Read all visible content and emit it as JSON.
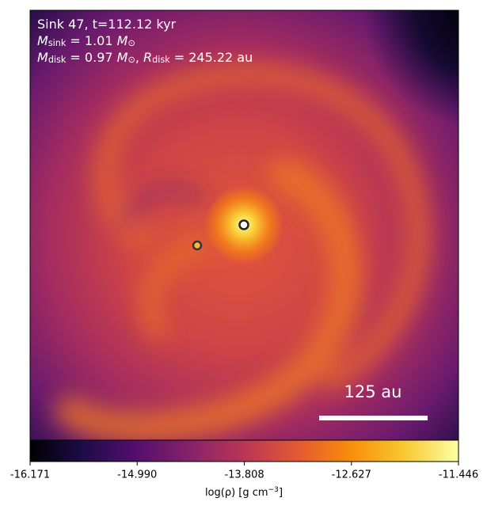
{
  "chart_data": {
    "type": "heatmap",
    "colormap": "inferno",
    "annotations": [
      [
        {
          "text": "Sink 47, t=112.12 kyr"
        }
      ],
      [
        {
          "text": "M"
        },
        {
          "text": "sink",
          "sub": true
        },
        {
          "text": " = 1.01 "
        },
        {
          "text": "M"
        },
        {
          "text": "⊙",
          "sub": true
        }
      ],
      [
        {
          "text": "M"
        },
        {
          "text": "disk",
          "sub": true
        },
        {
          "text": " = 0.97 "
        },
        {
          "text": "M"
        },
        {
          "text": "⊙",
          "sub": true
        },
        {
          "text": ", "
        },
        {
          "text": "R"
        },
        {
          "text": "disk",
          "sub": true
        },
        {
          "text": " = 245.22 au"
        }
      ]
    ],
    "scale_bar_label": "125 au",
    "colorbar": {
      "label": [
        {
          "text": "log(ρ) [g cm"
        },
        {
          "text": "−3",
          "sup": true
        },
        {
          "text": "]"
        }
      ],
      "clim": [
        -16.171,
        -11.446
      ],
      "ticks": [
        -16.171,
        {
          "value": -14.99,
          "label": "-14.990"
        },
        -13.808,
        -12.627,
        -11.446
      ]
    }
  }
}
